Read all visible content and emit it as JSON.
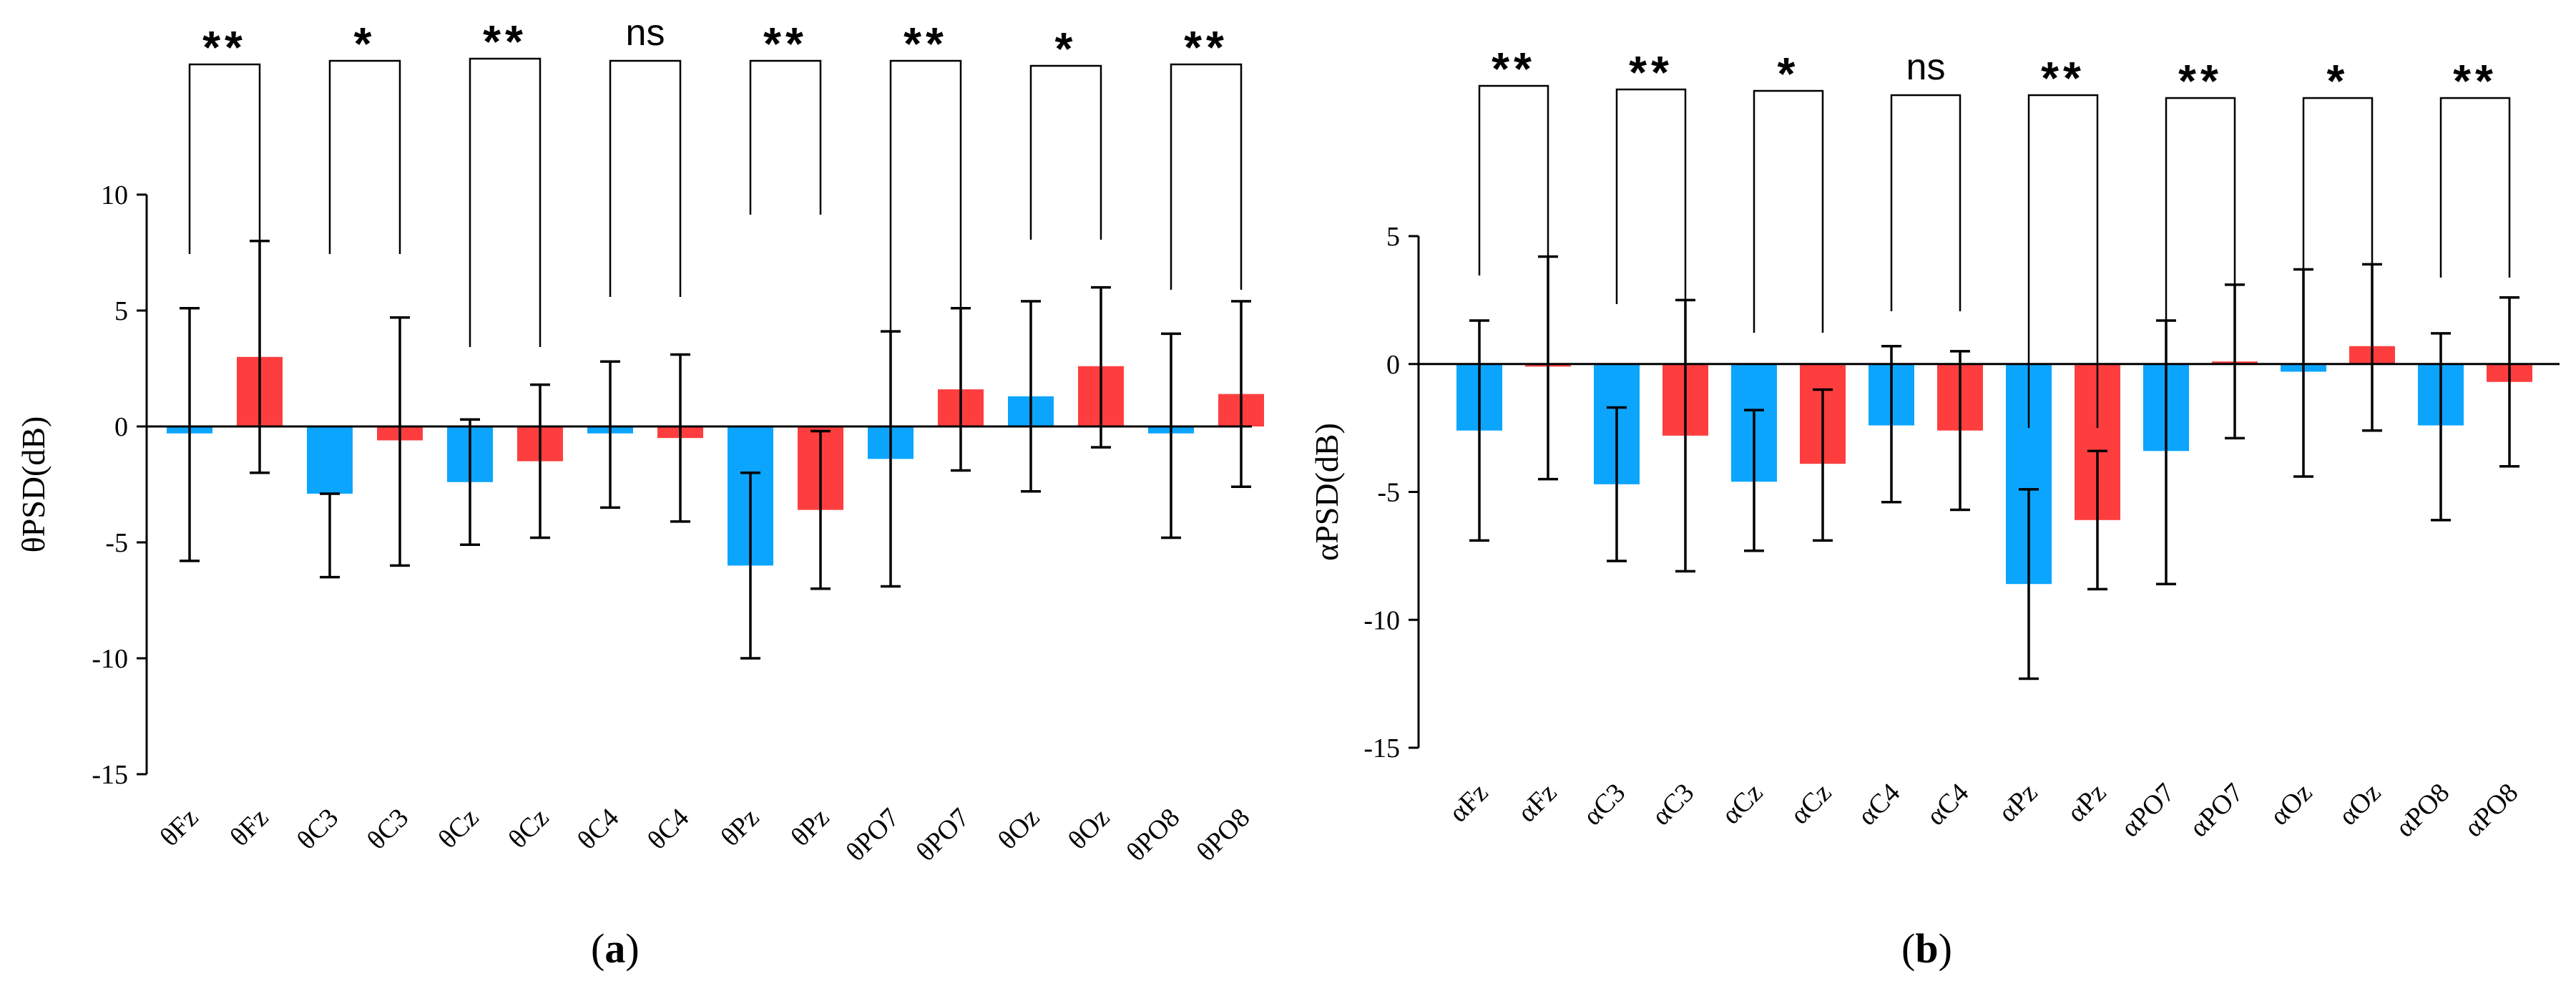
{
  "colors": {
    "blue": "#0BA5FE",
    "red": "#FE3E3E",
    "axis": "#000000"
  },
  "chart_data": [
    {
      "type": "bar",
      "panel_label": "a",
      "ylabel": "θPSD(dB)",
      "ylim": [
        -15,
        10
      ],
      "yticks": [
        10,
        5,
        0,
        -5,
        -10,
        -15
      ],
      "ytick_labels": [
        "10",
        "5",
        "0",
        "-5",
        "-10",
        "-15"
      ],
      "categories": [
        "θFz",
        "θFz",
        "θC3",
        "θC3",
        "θCz",
        "θCz",
        "θC4",
        "θC4",
        "θPz",
        "θPz",
        "θPO7",
        "θPO7",
        "θOz",
        "θOz",
        "θPO8",
        "θPO8"
      ],
      "values": [
        -0.3,
        3.0,
        -2.9,
        -0.6,
        -2.4,
        -1.5,
        -0.3,
        -0.5,
        -6.0,
        -3.6,
        -1.4,
        1.6,
        1.3,
        2.6,
        -0.3,
        1.4
      ],
      "error_low": [
        -5.8,
        -2.0,
        -6.5,
        -6.0,
        -5.1,
        -4.8,
        -3.5,
        -4.1,
        -10.0,
        -7.0,
        -6.9,
        -1.9,
        -2.8,
        -0.9,
        -4.8,
        -2.6
      ],
      "error_high": [
        5.1,
        8.0,
        -2.9,
        4.7,
        0.3,
        1.8,
        2.8,
        3.1,
        -2.0,
        -0.2,
        4.1,
        5.1,
        5.4,
        6.0,
        4.0,
        5.4
      ],
      "bar_colors": [
        "blue",
        "red",
        "blue",
        "red",
        "blue",
        "red",
        "blue",
        "red",
        "blue",
        "red",
        "blue",
        "red",
        "blue",
        "red",
        "blue",
        "red"
      ],
      "significance": [
        "**",
        "*",
        "**",
        "ns",
        "**",
        "**",
        "*",
        "**"
      ]
    },
    {
      "type": "bar",
      "panel_label": "b",
      "ylabel": "αPSD(dB)",
      "ylim": [
        -15,
        5
      ],
      "yticks": [
        5,
        0,
        -5,
        -10,
        -15
      ],
      "ytick_labels": [
        "5",
        "0",
        "-5",
        "-10",
        "-15"
      ],
      "categories": [
        "αFz",
        "αFz",
        "αC3",
        "αC3",
        "αCz",
        "αCz",
        "αC4",
        "αC4",
        "αPz",
        "αPz",
        "αPO7",
        "αPO7",
        "αOz",
        "αOz",
        "αPO8",
        "αPO8"
      ],
      "values": [
        -2.6,
        -0.1,
        -4.7,
        -2.8,
        -4.6,
        -3.9,
        -2.4,
        -2.6,
        -8.6,
        -6.1,
        -3.4,
        0.1,
        -0.3,
        0.7,
        -2.4,
        -0.7
      ],
      "error_low": [
        -6.9,
        -4.5,
        -7.7,
        -8.1,
        -7.3,
        -6.9,
        -5.4,
        -5.7,
        -12.3,
        -8.8,
        -8.6,
        -2.9,
        -4.4,
        -2.6,
        -6.1,
        -4.0
      ],
      "error_high": [
        1.7,
        4.2,
        -1.7,
        2.5,
        -1.8,
        -1.0,
        0.7,
        0.5,
        -4.9,
        -3.4,
        1.7,
        3.1,
        3.7,
        3.9,
        1.2,
        2.6
      ],
      "bar_colors": [
        "blue",
        "red",
        "blue",
        "red",
        "blue",
        "red",
        "blue",
        "red",
        "blue",
        "red",
        "blue",
        "red",
        "blue",
        "red",
        "blue",
        "red"
      ],
      "significance": [
        "**",
        "**",
        "*",
        "ns",
        "**",
        "**",
        "*",
        "**"
      ]
    }
  ]
}
